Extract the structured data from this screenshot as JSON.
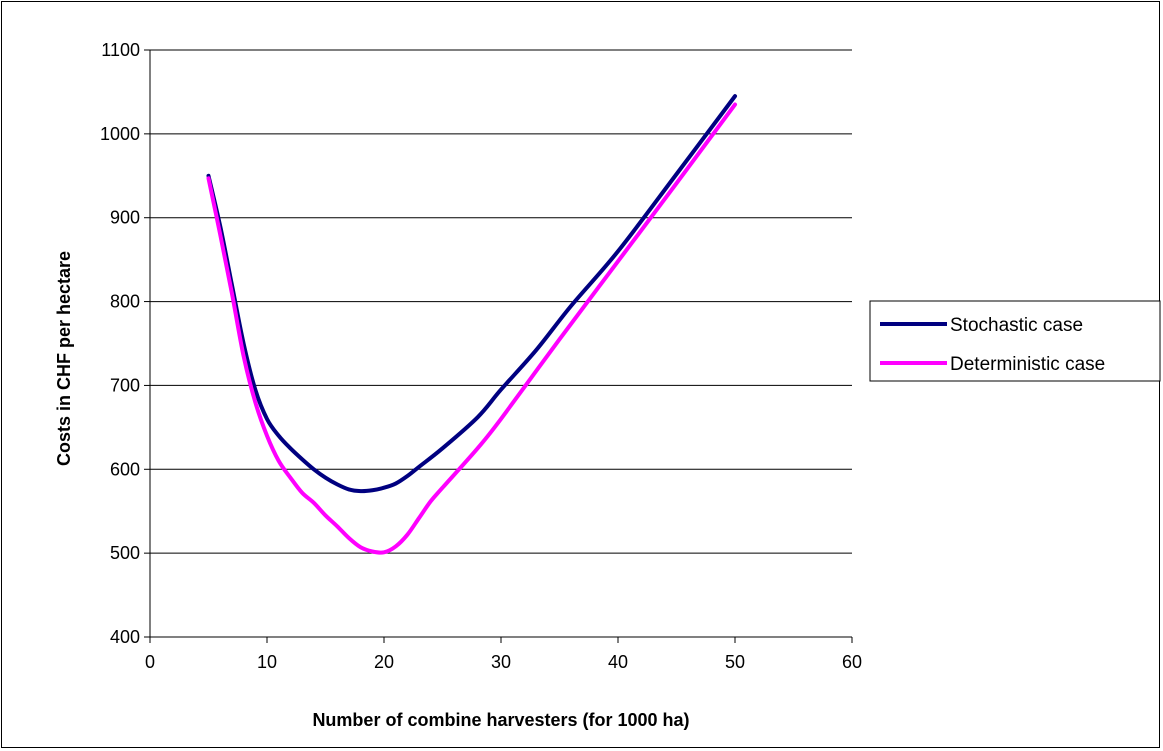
{
  "chart_data": {
    "type": "line",
    "title": "",
    "xlabel": "Number of combine harvesters (for 1000 ha)",
    "ylabel": "Costs in CHF per hectare",
    "xlim": [
      0,
      60
    ],
    "ylim": [
      400,
      1100
    ],
    "xticks": [
      0,
      10,
      20,
      30,
      40,
      50,
      60
    ],
    "yticks": [
      400,
      500,
      600,
      700,
      800,
      900,
      1000,
      1100
    ],
    "grid": "horizontal",
    "legend_position": "right",
    "series": [
      {
        "name": "Stochastic case",
        "color": "#000080",
        "points": [
          [
            5,
            950
          ],
          [
            6,
            890
          ],
          [
            7,
            820
          ],
          [
            8,
            750
          ],
          [
            9,
            695
          ],
          [
            10,
            660
          ],
          [
            11,
            640
          ],
          [
            12,
            625
          ],
          [
            13,
            612
          ],
          [
            14,
            600
          ],
          [
            15,
            590
          ],
          [
            16,
            582
          ],
          [
            17,
            576
          ],
          [
            18,
            574
          ],
          [
            19,
            575
          ],
          [
            20,
            578
          ],
          [
            21,
            583
          ],
          [
            22,
            592
          ],
          [
            23,
            603
          ],
          [
            25,
            625
          ],
          [
            28,
            662
          ],
          [
            30,
            695
          ],
          [
            33,
            742
          ],
          [
            36,
            795
          ],
          [
            40,
            860
          ],
          [
            45,
            952
          ],
          [
            50,
            1045
          ]
        ]
      },
      {
        "name": "Deterministic case",
        "color": "#FF00FF",
        "points": [
          [
            5,
            947
          ],
          [
            6,
            880
          ],
          [
            7,
            810
          ],
          [
            8,
            735
          ],
          [
            9,
            680
          ],
          [
            10,
            640
          ],
          [
            11,
            610
          ],
          [
            12,
            590
          ],
          [
            13,
            572
          ],
          [
            14,
            560
          ],
          [
            15,
            545
          ],
          [
            16,
            532
          ],
          [
            17,
            518
          ],
          [
            18,
            507
          ],
          [
            19,
            502
          ],
          [
            20,
            501
          ],
          [
            21,
            508
          ],
          [
            22,
            522
          ],
          [
            23,
            542
          ],
          [
            24,
            562
          ],
          [
            25,
            578
          ],
          [
            28,
            625
          ],
          [
            30,
            660
          ],
          [
            35,
            755
          ],
          [
            40,
            848
          ],
          [
            45,
            941
          ],
          [
            50,
            1035
          ]
        ]
      }
    ]
  }
}
